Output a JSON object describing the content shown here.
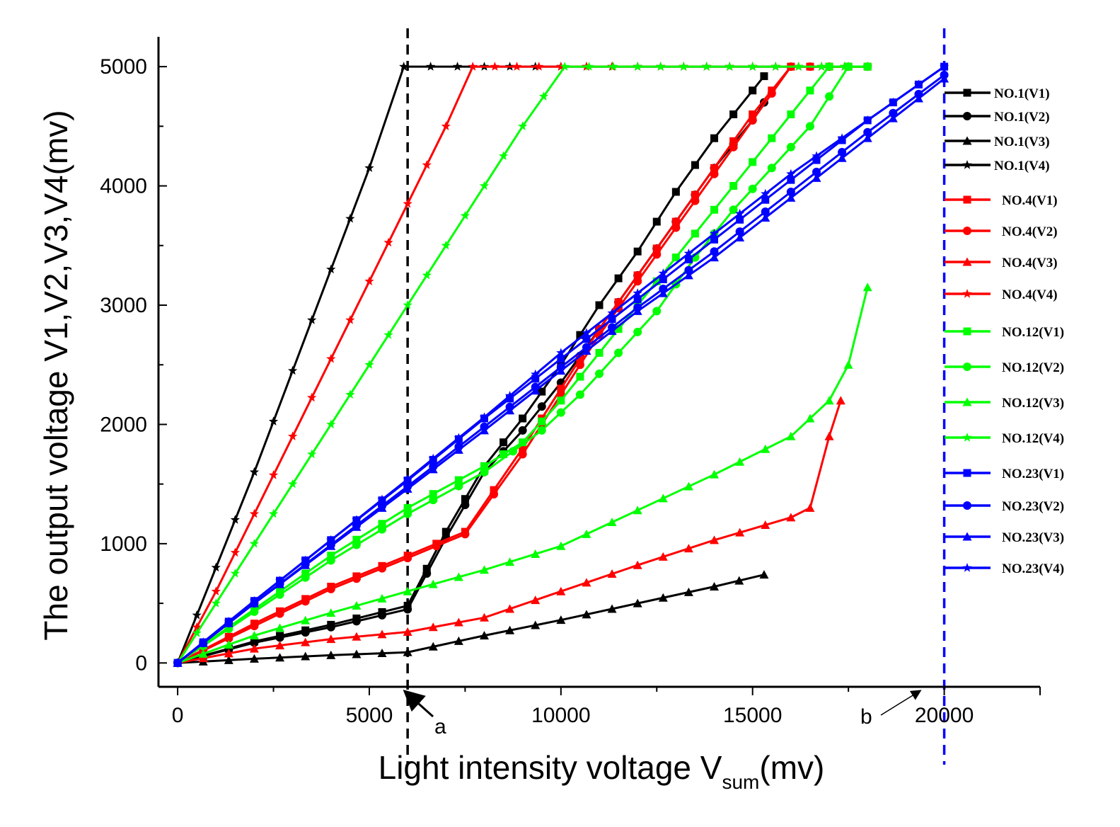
{
  "chart_data": {
    "type": "line",
    "title": "",
    "xlabel": "Light intensity voltage V",
    "xlabel_sub": "sum",
    "xlabel_suffix": "(mv)",
    "ylabel": "The output voltage V1,V2,V3,V4(mv)",
    "xlim": [
      -500,
      22500
    ],
    "ylim": [
      -200,
      5250
    ],
    "x_ticks": [
      0,
      5000,
      10000,
      15000,
      20000
    ],
    "x_tick_labels": [
      "0",
      "5000",
      "10000",
      "15000",
      "20000"
    ],
    "y_ticks": [
      0,
      1000,
      2000,
      3000,
      4000,
      5000
    ],
    "y_tick_labels": [
      "0",
      "1000",
      "2000",
      "3000",
      "4000",
      "5000"
    ],
    "grid": false,
    "legend_position": "right",
    "colors": {
      "black": "#000000",
      "red": "#ff0000",
      "green": "#00ff00",
      "blue": "#0000ff"
    },
    "reference_lines": [
      {
        "x": 6000,
        "color": "#000000",
        "style": "dashed"
      },
      {
        "x": 20000,
        "color": "#0000ff",
        "style": "dashed"
      }
    ],
    "annotations": [
      {
        "text": "a",
        "x": 6000
      },
      {
        "text": "b",
        "x": 20000
      }
    ],
    "series": [
      {
        "name": "NO.1(V1)",
        "color": "#000000",
        "marker": "square",
        "x": [
          0,
          2000,
          4000,
          6000,
          7000,
          8000,
          9000,
          10000,
          11000,
          12000,
          13000,
          14000,
          15000,
          15300
        ],
        "y": [
          0,
          180,
          320,
          480,
          1100,
          1650,
          2050,
          2500,
          3000,
          3450,
          3950,
          4400,
          4800,
          4920
        ]
      },
      {
        "name": "NO.1(V2)",
        "color": "#000000",
        "marker": "circle",
        "x": [
          0,
          2000,
          4000,
          6000,
          7000,
          8000,
          9000,
          10000,
          11000,
          12000,
          13000,
          14000,
          15000,
          15300
        ],
        "y": [
          0,
          170,
          300,
          450,
          1050,
          1600,
          1950,
          2350,
          2800,
          3250,
          3700,
          4150,
          4550,
          4700
        ]
      },
      {
        "name": "NO.1(V3)",
        "color": "#000000",
        "marker": "triangle",
        "x": [
          0,
          2000,
          4000,
          6000,
          8000,
          10000,
          12000,
          14000,
          15300
        ],
        "y": [
          0,
          35,
          65,
          90,
          230,
          360,
          500,
          640,
          740
        ]
      },
      {
        "name": "NO.1(V4)",
        "color": "#000000",
        "marker": "star",
        "x": [
          0,
          1000,
          2000,
          3000,
          4000,
          5000,
          5900,
          8000,
          10000,
          12000,
          15000,
          18000
        ],
        "y": [
          0,
          800,
          1600,
          2450,
          3300,
          4150,
          5000,
          5000,
          5000,
          5000,
          5000,
          5000
        ]
      },
      {
        "name": "NO.4(V1)",
        "color": "#ff0000",
        "marker": "square",
        "x": [
          0,
          2000,
          4000,
          6000,
          7500,
          9000,
          10000,
          11000,
          12000,
          13000,
          14000,
          15000,
          16000,
          17000,
          18000
        ],
        "y": [
          0,
          330,
          640,
          900,
          1100,
          1800,
          2300,
          2800,
          3250,
          3700,
          4150,
          4600,
          5000,
          5000,
          5000
        ]
      },
      {
        "name": "NO.4(V2)",
        "color": "#ff0000",
        "marker": "circle",
        "x": [
          0,
          2000,
          4000,
          6000,
          7500,
          9000,
          10000,
          11000,
          12000,
          13000,
          14000,
          15000,
          16000,
          17000,
          18000
        ],
        "y": [
          0,
          310,
          620,
          880,
          1080,
          1750,
          2250,
          2750,
          3200,
          3650,
          4100,
          4550,
          5000,
          5000,
          5000
        ]
      },
      {
        "name": "NO.4(V3)",
        "color": "#ff0000",
        "marker": "triangle",
        "x": [
          0,
          2000,
          4000,
          6000,
          8000,
          10000,
          12000,
          14000,
          16000,
          16500,
          17000,
          17300
        ],
        "y": [
          0,
          120,
          200,
          260,
          380,
          600,
          820,
          1030,
          1220,
          1300,
          1900,
          2200
        ]
      },
      {
        "name": "NO.4(V4)",
        "color": "#ff0000",
        "marker": "star",
        "x": [
          0,
          1000,
          2000,
          3000,
          4000,
          5000,
          6000,
          7000,
          7700,
          10000,
          12000,
          15000,
          18000
        ],
        "y": [
          0,
          600,
          1250,
          1900,
          2550,
          3200,
          3850,
          4500,
          5000,
          5000,
          5000,
          5000,
          5000
        ]
      },
      {
        "name": "NO.12(V1)",
        "color": "#00ff00",
        "marker": "square",
        "x": [
          0,
          2000,
          4000,
          6000,
          8000,
          9000,
          10000,
          11000,
          12000,
          13000,
          14000,
          15000,
          16000,
          17000,
          18000
        ],
        "y": [
          0,
          450,
          900,
          1300,
          1650,
          1850,
          2200,
          2600,
          3000,
          3400,
          3800,
          4200,
          4600,
          5000,
          5000
        ]
      },
      {
        "name": "NO.12(V2)",
        "color": "#00ff00",
        "marker": "circle",
        "x": [
          0,
          2000,
          4000,
          6000,
          8000,
          9500,
          10500,
          11500,
          12500,
          13500,
          14500,
          15500,
          16500,
          17500,
          18000
        ],
        "y": [
          0,
          430,
          860,
          1250,
          1600,
          1950,
          2250,
          2600,
          2950,
          3400,
          3800,
          4150,
          4500,
          5000,
          5000
        ]
      },
      {
        "name": "NO.12(V3)",
        "color": "#00ff00",
        "marker": "triangle",
        "x": [
          0,
          2000,
          4000,
          6000,
          8000,
          10000,
          12000,
          14000,
          16000,
          17000,
          17500,
          18000
        ],
        "y": [
          0,
          230,
          420,
          600,
          780,
          980,
          1280,
          1580,
          1900,
          2200,
          2500,
          3150
        ]
      },
      {
        "name": "NO.12(V4)",
        "color": "#00ff00",
        "marker": "star",
        "x": [
          0,
          1000,
          2000,
          3000,
          4000,
          5000,
          6000,
          7000,
          8000,
          9000,
          10100,
          12000,
          15000,
          18000
        ],
        "y": [
          0,
          500,
          1000,
          1500,
          2000,
          2500,
          3000,
          3500,
          4000,
          4500,
          5000,
          5000,
          5000,
          5000
        ]
      },
      {
        "name": "NO.23(V1)",
        "color": "#0000ff",
        "marker": "square",
        "x": [
          0,
          2000,
          4000,
          6000,
          8000,
          10000,
          12000,
          14000,
          16000,
          18000,
          20000
        ],
        "y": [
          0,
          520,
          1030,
          1530,
          2050,
          2550,
          3050,
          3550,
          4050,
          4550,
          5000
        ]
      },
      {
        "name": "NO.23(V2)",
        "color": "#0000ff",
        "marker": "circle",
        "x": [
          0,
          2000,
          4000,
          6000,
          8000,
          10000,
          12000,
          14000,
          16000,
          18000,
          20000
        ],
        "y": [
          0,
          500,
          990,
          1480,
          1980,
          2480,
          2980,
          3450,
          3950,
          4450,
          4930
        ]
      },
      {
        "name": "NO.23(V3)",
        "color": "#0000ff",
        "marker": "triangle",
        "x": [
          0,
          2000,
          4000,
          6000,
          8000,
          10000,
          12000,
          14000,
          16000,
          18000,
          20000
        ],
        "y": [
          0,
          500,
          980,
          1460,
          1950,
          2450,
          2950,
          3400,
          3900,
          4400,
          4900
        ]
      },
      {
        "name": "NO.23(V4)",
        "color": "#0000ff",
        "marker": "star",
        "x": [
          0,
          2000,
          4000,
          6000,
          8000,
          10000,
          12000,
          14000,
          16000,
          18000,
          20000
        ],
        "y": [
          0,
          520,
          1030,
          1540,
          2060,
          2600,
          3100,
          3600,
          4100,
          4550,
          5000
        ]
      }
    ]
  }
}
